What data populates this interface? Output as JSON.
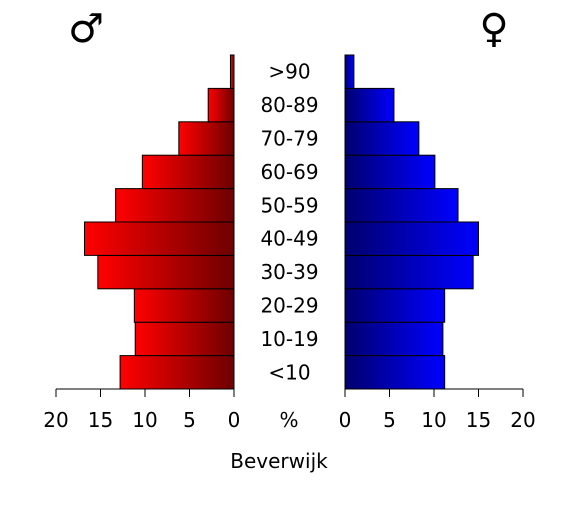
{
  "chart_data": {
    "type": "bar",
    "title": "Beverwijk",
    "male_symbol": "♂",
    "female_symbol": "♀",
    "unit_label": "%",
    "categories": [
      "<10",
      "10-19",
      "20-29",
      "30-39",
      "40-49",
      "50-59",
      "60-69",
      "70-79",
      "80-89",
      ">90"
    ],
    "series": [
      {
        "name": "♂",
        "values": [
          12.8,
          11.1,
          11.2,
          15.3,
          16.8,
          13.3,
          10.3,
          6.2,
          2.9,
          0.4
        ],
        "color_light": "#ff0000",
        "color_dark": "#6e0000"
      },
      {
        "name": "♀",
        "values": [
          11.2,
          11.0,
          11.2,
          14.4,
          15.0,
          12.7,
          10.1,
          8.3,
          5.5,
          1.0
        ],
        "color_light": "#0000ff",
        "color_dark": "#00006e"
      }
    ],
    "xlim": [
      0,
      20
    ],
    "ticks": [
      0,
      5,
      10,
      15,
      20
    ],
    "tick_labels": [
      "0",
      "5",
      "10",
      "15",
      "20"
    ]
  }
}
